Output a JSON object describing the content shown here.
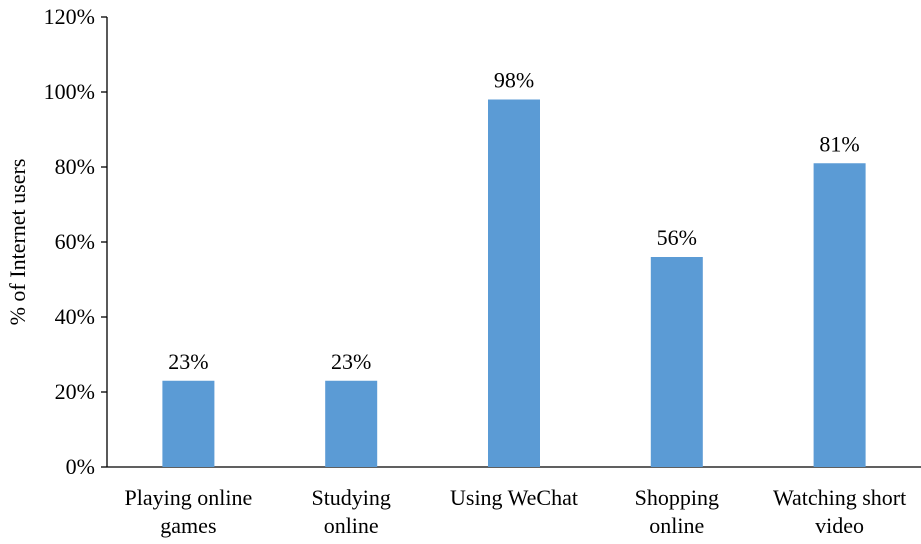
{
  "chart_data": {
    "type": "bar",
    "title": "",
    "xlabel": "",
    "ylabel": "% of Internet users",
    "ylim": [
      0,
      120
    ],
    "yticks": [
      "0%",
      "20%",
      "40%",
      "60%",
      "80%",
      "100%",
      "120%"
    ],
    "ytick_values": [
      0,
      20,
      40,
      60,
      80,
      100,
      120
    ],
    "categories": [
      [
        "Playing online",
        "games"
      ],
      [
        "Studying",
        "online"
      ],
      [
        "Using WeChat"
      ],
      [
        "Shopping",
        "online"
      ],
      [
        "Watching short",
        "video"
      ]
    ],
    "values": [
      23,
      23,
      98,
      56,
      81
    ],
    "data_labels": [
      "23%",
      "23%",
      "98%",
      "56%",
      "81%"
    ],
    "bar_color": "#5b9bd5",
    "grid": false,
    "legend": "none"
  }
}
